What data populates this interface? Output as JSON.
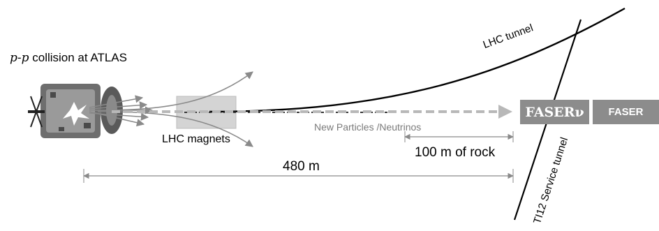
{
  "title": {
    "symbol": "p-p",
    "text": " collision at ATLAS"
  },
  "magnets_label": "LHC magnets",
  "tunnel_label": "LHC tunnel",
  "service_tunnel_label": "TI12 Service tunnel",
  "particles_label": "New Particles /Neutrinos",
  "rock_label": "100 m of rock",
  "distance_label": "480 m",
  "detectors": {
    "faser_nu": "FASERν",
    "faser": "FASER"
  },
  "colors": {
    "detector_box": "#8c8c8c",
    "magnet_box": "#d4d4d4",
    "beam_dashed": "#9a9a9a",
    "lines": "#000000",
    "arrows": "#8a8a8a"
  }
}
